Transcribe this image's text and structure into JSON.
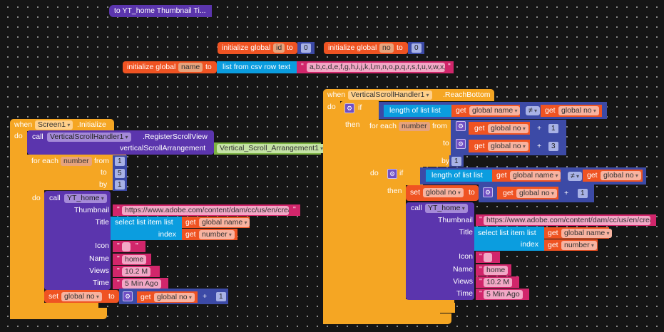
{
  "proc_def": {
    "label": "to YT_home   Thumbnail   Ti..."
  },
  "globals": {
    "init_label": "initialize global",
    "to": "to",
    "id_name": "id",
    "id_value": "0",
    "no_name": "no",
    "no_value": "0",
    "name_name": "name",
    "csv_label": "list from csv row  text",
    "csv_text": "a,b,c,d,e,f,g,h,i,j,k,l,m,n,o,p,q,r,s,t,u,v,w,x,..."
  },
  "common": {
    "when": "when",
    "do": "do",
    "call": "call",
    "then": "then",
    "if": "if",
    "for_each": "for each",
    "from": "from",
    "to": "to",
    "by": "by",
    "get": "get",
    "set": "set",
    "plus": "+",
    "neq": "≠",
    "length_of_list": "length of list  list",
    "select_list_item": "select list item  list",
    "index": "index",
    "var_number": "number",
    "global_no": "global no",
    "global_name": "global name",
    "quote": "\"",
    "proc": "YT_home",
    "params": {
      "thumbnail": "Thumbnail",
      "title": "Title",
      "icon": "Icon",
      "name": "Name",
      "views": "Views",
      "time": "Time"
    },
    "values": {
      "thumbnail": "https://www.adobe.com/content/dam/cc/us/en/creat...",
      "icon": "",
      "name": "home",
      "views": "10.2 M",
      "time": "5 Min Ago"
    }
  },
  "left": {
    "component": "Screen1",
    "event": ".Initialize",
    "handler": "VerticalScrollHandler1",
    "method": ".RegisterScrollView",
    "arg_label": "verticalScrollArrangement",
    "arrangement": "Vertical_Scroll_Arrangement1",
    "from": "1",
    "to": "5",
    "by": "1",
    "increment": "1"
  },
  "right": {
    "component": "VerticalScrollHandler1",
    "event": ".ReachBottom",
    "from_add": "1",
    "to_add": "3",
    "by": "1",
    "increment": "1"
  }
}
